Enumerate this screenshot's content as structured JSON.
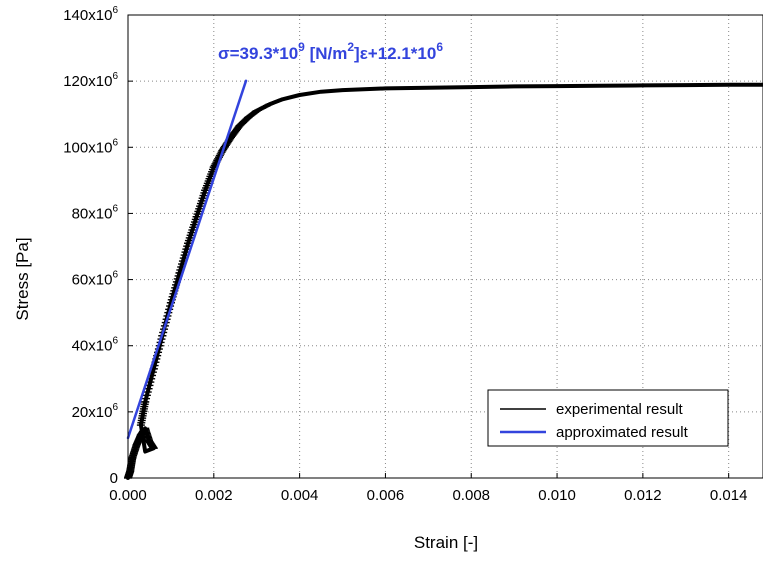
{
  "chart_data": {
    "type": "line",
    "xlabel": "Strain [-]",
    "ylabel": "Stress [Pa]",
    "xlim": [
      0,
      0.0148
    ],
    "ylim": [
      0,
      140000000
    ],
    "x_ticks": [
      {
        "value": 0,
        "label": "0.000"
      },
      {
        "value": 0.002,
        "label": "0.002"
      },
      {
        "value": 0.004,
        "label": "0.004"
      },
      {
        "value": 0.006,
        "label": "0.006"
      },
      {
        "value": 0.008,
        "label": "0.008"
      },
      {
        "value": 0.01,
        "label": "0.010"
      },
      {
        "value": 0.012,
        "label": "0.012"
      },
      {
        "value": 0.014,
        "label": "0.014"
      }
    ],
    "y_ticks": [
      {
        "value": 0,
        "base": "0",
        "exp": ""
      },
      {
        "value": 20000000,
        "base": "20x10",
        "exp": "6"
      },
      {
        "value": 40000000,
        "base": "40x10",
        "exp": "6"
      },
      {
        "value": 60000000,
        "base": "60x10",
        "exp": "6"
      },
      {
        "value": 80000000,
        "base": "80x10",
        "exp": "6"
      },
      {
        "value": 100000000,
        "base": "100x10",
        "exp": "6"
      },
      {
        "value": 120000000,
        "base": "120x10",
        "exp": "6"
      },
      {
        "value": 140000000,
        "base": "140x10",
        "exp": "6"
      }
    ],
    "grid": true,
    "legend_position": "bottom-right",
    "series": [
      {
        "name": "experimental result",
        "color": "#000000",
        "x": [
          0,
          5e-05,
          0.0001,
          0.0002,
          0.0003,
          0.0004,
          0.0005,
          0.0006,
          0.0004,
          0.0003,
          0.0004,
          0.0006,
          0.0008,
          0.001,
          0.0012,
          0.0014,
          0.0016,
          0.0018,
          0.002,
          0.0022,
          0.0024,
          0.0026,
          0.0028,
          0.003,
          0.0033,
          0.0036,
          0.004,
          0.0045,
          0.005,
          0.006,
          0.007,
          0.008,
          0.009,
          0.01,
          0.011,
          0.012,
          0.013,
          0.014,
          0.0148
        ],
        "y": [
          0,
          2000000,
          6000000,
          10000000,
          13000000,
          15000000,
          11000000,
          9000000,
          8000000,
          16000000,
          23000000,
          33000000,
          43000000,
          53000000,
          62000000,
          71000000,
          79000000,
          87000000,
          94000000,
          99000000,
          103000000,
          106500000,
          109000000,
          111000000,
          113000000,
          114500000,
          115800000,
          116800000,
          117300000,
          117800000,
          118000000,
          118200000,
          118400000,
          118500000,
          118600000,
          118700000,
          118800000,
          118900000,
          118900000
        ]
      },
      {
        "name": "approximated result",
        "color": "#3344dd",
        "x": [
          0,
          0.00275
        ],
        "y": [
          12100000,
          120100000
        ]
      }
    ],
    "annotation": {
      "prefix": "σ=39.3*10",
      "exp1": "9",
      "middle": " [N/m",
      "exp2": "2",
      "suffix": "]ε+12.1*10",
      "exp3": "6",
      "color": "#3344dd"
    }
  }
}
